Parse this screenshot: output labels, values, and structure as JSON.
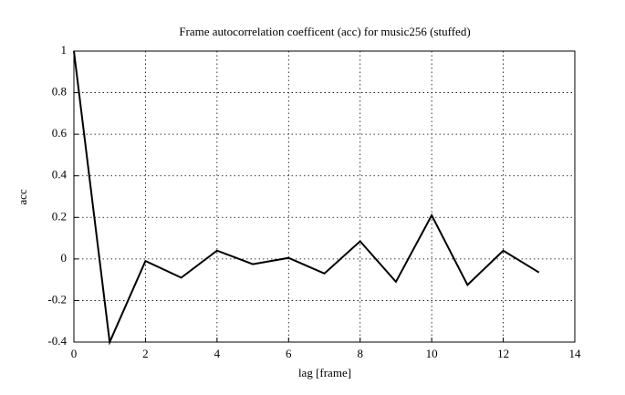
{
  "chart_data": {
    "type": "line",
    "title": "Frame autocorrelation coefficent (acc) for music256 (stuffed)",
    "x_label": "lag [frame]",
    "y_label": "acc",
    "x": [
      0,
      1,
      2,
      3,
      4,
      5,
      6,
      7,
      8,
      9,
      10,
      11,
      12,
      13
    ],
    "series": [
      {
        "name": "acc",
        "color": "#000000",
        "values": [
          1,
          -0.4,
          -0.01,
          -0.09,
          0.04,
          -0.025,
          0.005,
          -0.07,
          0.085,
          -0.11,
          0.21,
          -0.125,
          0.04,
          -0.065
        ]
      }
    ],
    "xlim": [
      0,
      14
    ],
    "xticks": [
      0,
      2,
      4,
      6,
      8,
      10,
      12,
      14
    ],
    "ylim": [
      -0.4,
      1
    ],
    "yticks": [
      -0.4,
      -0.2,
      0,
      0.2,
      0.4,
      0.6,
      0.8,
      1
    ],
    "grid": true
  }
}
